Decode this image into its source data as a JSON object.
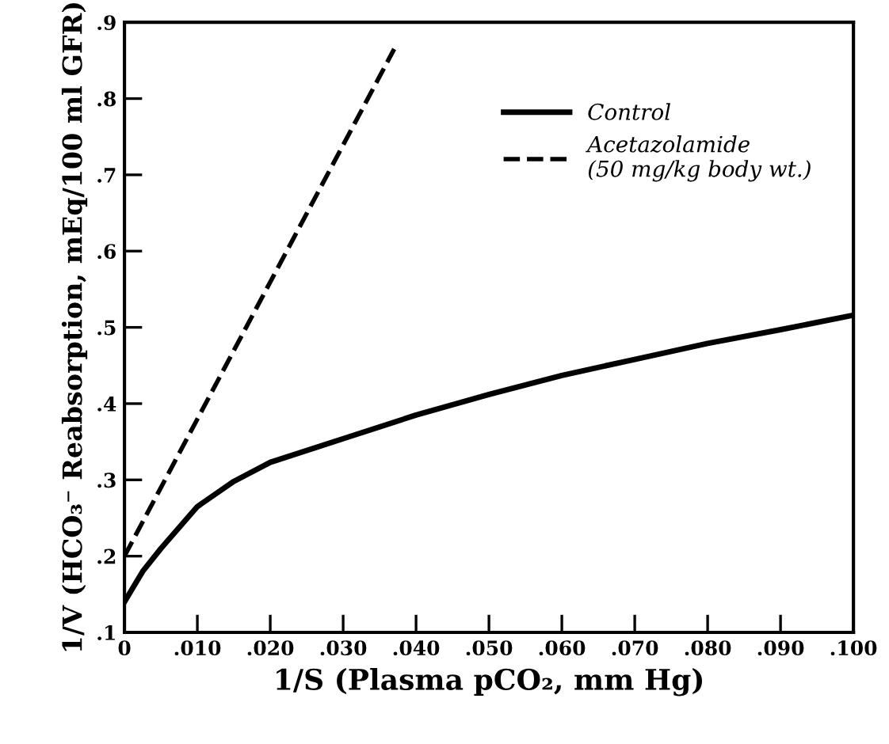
{
  "chart_data": {
    "type": "line",
    "xlabel": "1/S (Plasma pCO₂, mm Hg)",
    "ylabel": "1/V (HCO₃⁻ Reabsorption, mEq/100 ml GFR)",
    "series": [
      {
        "name": "Control",
        "color": "#000000",
        "line_style": "solid",
        "x": [
          0,
          0.0025,
          0.005,
          0.01,
          0.015,
          0.02,
          0.03,
          0.04,
          0.05,
          0.06,
          0.07,
          0.08,
          0.09,
          0.1
        ],
        "values": [
          0.14,
          0.18,
          0.21,
          0.265,
          0.298,
          0.323,
          0.354,
          0.385,
          0.412,
          0.437,
          0.458,
          0.479,
          0.497,
          0.516
        ]
      },
      {
        "name": "Acetazolamide\n(50 mg/kg body wt.)",
        "color": "#000000",
        "line_style": "dashed",
        "x": [
          0,
          0.037
        ],
        "values": [
          0.2,
          0.865
        ]
      }
    ],
    "xlim": [
      0,
      0.1
    ],
    "ylim": [
      0.1,
      0.9
    ],
    "xticks": [
      {
        "value": 0,
        "label": "0"
      },
      {
        "value": 0.01,
        "label": ".010"
      },
      {
        "value": 0.02,
        "label": ".020"
      },
      {
        "value": 0.03,
        "label": ".030"
      },
      {
        "value": 0.04,
        "label": ".040"
      },
      {
        "value": 0.05,
        "label": ".050"
      },
      {
        "value": 0.06,
        "label": ".060"
      },
      {
        "value": 0.07,
        "label": ".070"
      },
      {
        "value": 0.08,
        "label": ".080"
      },
      {
        "value": 0.09,
        "label": ".090"
      },
      {
        "value": 0.1,
        "label": ".100"
      }
    ],
    "yticks": [
      {
        "value": 0.1,
        "label": ".1"
      },
      {
        "value": 0.2,
        "label": ".2"
      },
      {
        "value": 0.3,
        "label": ".3"
      },
      {
        "value": 0.4,
        "label": ".4"
      },
      {
        "value": 0.5,
        "label": ".5"
      },
      {
        "value": 0.6,
        "label": ".6"
      },
      {
        "value": 0.7,
        "label": ".7"
      },
      {
        "value": 0.8,
        "label": ".8"
      },
      {
        "value": 0.9,
        "label": ".9"
      }
    ],
    "grid": false,
    "legend": "top right",
    "marker": "none"
  }
}
